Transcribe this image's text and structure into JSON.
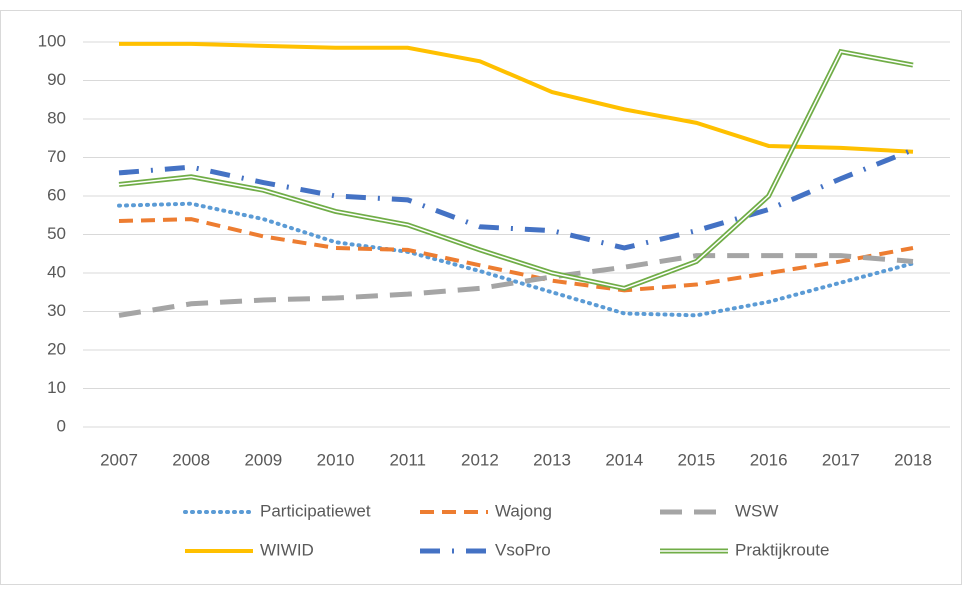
{
  "chart_data": {
    "type": "line",
    "categories": [
      "2007",
      "2008",
      "2009",
      "2010",
      "2011",
      "2012",
      "2013",
      "2014",
      "2015",
      "2016",
      "2017",
      "2018"
    ],
    "ylim": [
      0,
      100
    ],
    "yticks": [
      0,
      10,
      20,
      30,
      40,
      50,
      60,
      70,
      80,
      90,
      100
    ],
    "grid": true,
    "legend": "bottom",
    "series": [
      {
        "name": "Participatiewet",
        "color": "#5b9bd5",
        "style": "dotted",
        "values": [
          57.5,
          58,
          54,
          48,
          45.5,
          40.5,
          35,
          29.5,
          29,
          32.5,
          37.5,
          42.5
        ]
      },
      {
        "name": "Wajong",
        "color": "#ed7d31",
        "style": "dashed",
        "values": [
          53.5,
          54,
          49.5,
          46.5,
          46,
          42,
          38,
          35.5,
          37,
          40,
          43,
          46.5
        ]
      },
      {
        "name": "WSW",
        "color": "#a5a5a5",
        "style": "longdash",
        "values": [
          29,
          32,
          33,
          33.5,
          34.5,
          36,
          39,
          41.5,
          44.5,
          44.5,
          44.5,
          43
        ]
      },
      {
        "name": "WIWID",
        "color": "#ffc000",
        "style": "solid",
        "values": [
          99.5,
          99.5,
          99,
          98.5,
          98.5,
          95,
          87,
          82.5,
          79,
          73,
          72.5,
          71.5
        ]
      },
      {
        "name": "VsoPro",
        "color": "#4472c4",
        "style": "dashdot",
        "values": [
          66,
          67.5,
          63.5,
          60,
          59,
          52,
          51,
          46.5,
          51,
          56.5,
          64.5,
          72
        ]
      },
      {
        "name": "Praktijkroute",
        "color": "#70ad47",
        "style": "double",
        "values": [
          63,
          65,
          61.5,
          56,
          52.5,
          46,
          40,
          36,
          43,
          60,
          97.5,
          94
        ]
      }
    ]
  }
}
